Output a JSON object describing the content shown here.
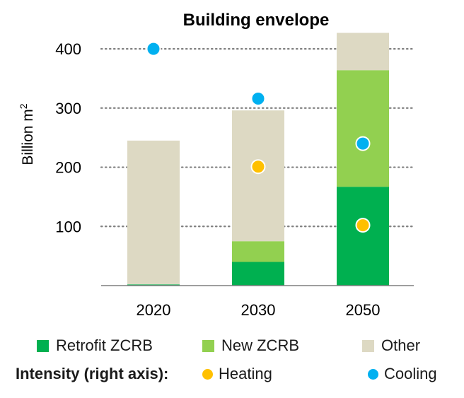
{
  "chart_data": {
    "type": "bar",
    "title": "Building envelope",
    "ylabel": "Billion m",
    "ylabel_superscript": "2",
    "xlabel": "",
    "ylim": [
      0,
      430
    ],
    "yticks": [
      100,
      200,
      300,
      400
    ],
    "grid": "horizontal dotted",
    "categories": [
      "2020",
      "2030",
      "2050"
    ],
    "stacked": true,
    "series": [
      {
        "name": "Retrofit ZCRB",
        "color": "#00b050",
        "values": [
          2,
          40,
          167
        ]
      },
      {
        "name": "New ZCRB",
        "color": "#92d050",
        "values": [
          0,
          35,
          197
        ]
      },
      {
        "name": "Other",
        "color": "#ddd9c3",
        "values": [
          243,
          221,
          63
        ]
      }
    ],
    "intensity_points": [
      {
        "name": "Heating",
        "color": "#ffc000",
        "values": [
          null,
          201,
          102
        ]
      },
      {
        "name": "Cooling",
        "color": "#00b0f0",
        "values": [
          400,
          316,
          240
        ]
      }
    ],
    "intensity_axis_note": "right axis (no scale shown; positions read on left-axis scale)"
  },
  "legend": {
    "retrofit": "Retrofit ZCRB",
    "new": "New ZCRB",
    "other": "Other",
    "intensity_label": "Intensity  (right axis):",
    "heating": "Heating",
    "cooling": "Cooling"
  },
  "colors": {
    "retrofit": "#00b050",
    "new": "#92d050",
    "other": "#ddd9c3",
    "heating": "#ffc000",
    "cooling": "#00b0f0"
  }
}
